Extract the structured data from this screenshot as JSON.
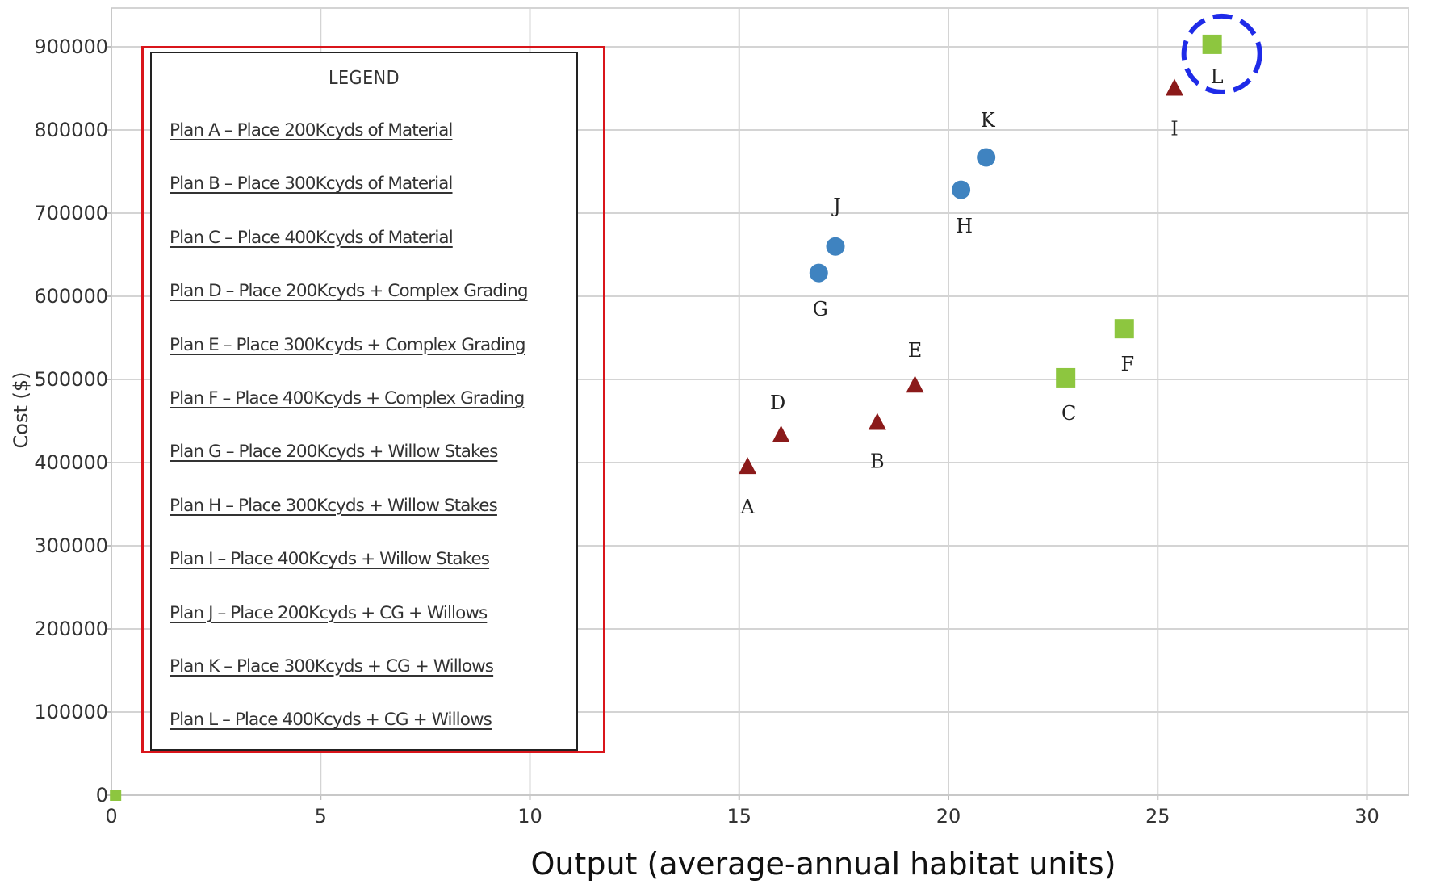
{
  "chart_data": {
    "type": "scatter",
    "title": "",
    "xlabel": "Output (average-annual habitat units)",
    "ylabel": "Cost ($)",
    "xlim": [
      0,
      31
    ],
    "ylim": [
      0,
      950000
    ],
    "x_ticks": [
      0,
      5,
      10,
      15,
      20,
      25,
      30
    ],
    "y_ticks": [
      0,
      100000,
      200000,
      300000,
      400000,
      500000,
      600000,
      700000,
      800000,
      900000
    ],
    "grid": true,
    "series": [
      {
        "marker": "triangle",
        "color": "#8b1a1a",
        "points": [
          {
            "label": "A",
            "x": 15.2,
            "y": 395000
          },
          {
            "label": "D",
            "x": 16.0,
            "y": 433000
          },
          {
            "label": "B",
            "x": 18.3,
            "y": 448000
          },
          {
            "label": "E",
            "x": 19.2,
            "y": 493000
          },
          {
            "label": "I",
            "x": 25.4,
            "y": 850000
          }
        ]
      },
      {
        "marker": "circle",
        "color": "#3f83c0",
        "points": [
          {
            "label": "G",
            "x": 16.9,
            "y": 628000
          },
          {
            "label": "J",
            "x": 17.3,
            "y": 660000
          },
          {
            "label": "H",
            "x": 20.3,
            "y": 728000
          },
          {
            "label": "K",
            "x": 20.9,
            "y": 767000
          }
        ]
      },
      {
        "marker": "square",
        "color": "#8dc63f",
        "points": [
          {
            "label": "",
            "x": 0.1,
            "y": 0
          },
          {
            "label": "C",
            "x": 22.8,
            "y": 502000
          },
          {
            "label": "F",
            "x": 24.2,
            "y": 561000
          },
          {
            "label": "L",
            "x": 26.3,
            "y": 903000
          }
        ]
      }
    ],
    "highlight": {
      "label": "L",
      "style": "dashed-circle",
      "color": "#1f2be8"
    },
    "legend": {
      "title": "LEGEND",
      "placement": "left",
      "border_color": "#d9151b",
      "items": [
        "Plan A – Place 200Kcyds of Material",
        "Plan B – Place 300Kcyds of Material",
        "Plan C – Place 400Kcyds of Material",
        "Plan D – Place 200Kcyds + Complex Grading",
        "Plan E – Place 300Kcyds + Complex Grading",
        "Plan F – Place 400Kcyds + Complex Grading",
        "Plan G – Place 200Kcyds + Willow Stakes",
        "Plan H – Place 300Kcyds + Willow Stakes",
        "Plan I – Place 400Kcyds + Willow Stakes",
        "Plan J – Place 200Kcyds + CG + Willows",
        "Plan K – Place 300Kcyds + CG + Willows",
        "Plan L – Place 400Kcyds + CG + Willows"
      ]
    }
  }
}
